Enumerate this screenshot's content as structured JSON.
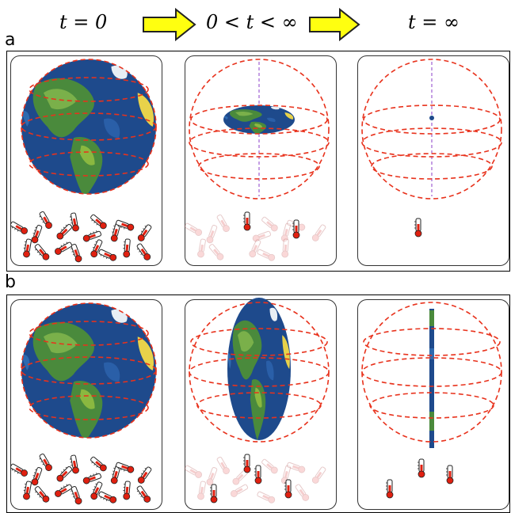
{
  "header": {
    "t0": "t = 0",
    "tmid": "0 < t < ∞",
    "tinf": "t = ∞"
  },
  "rows": [
    {
      "label": "a"
    },
    {
      "label": "b"
    }
  ],
  "colors": {
    "sphere_outline": "#e8321c",
    "axis": "#8b3fc8",
    "ocean": "#1e4a8c",
    "land": "#4a8a3c",
    "arrow_fill": "#ffff10",
    "arrow_stroke": "#222222",
    "thermometer_bulb": "#e02010"
  },
  "icons": [
    "right-arrow-icon",
    "earth-globe-icon",
    "thermometer-icon"
  ]
}
